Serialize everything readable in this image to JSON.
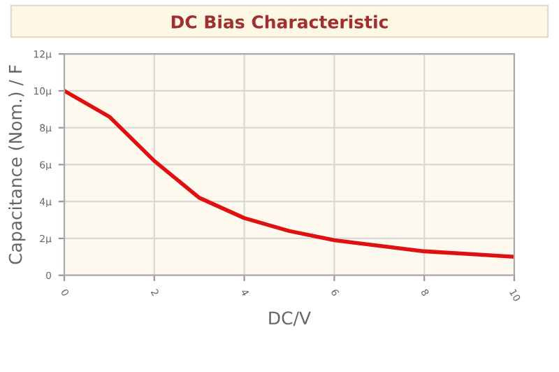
{
  "chart_data": {
    "type": "line",
    "title": "DC Bias Characteristic",
    "xlabel": "DC/V",
    "ylabel": "Capacitance (Nom.) / F",
    "x": [
      0,
      1,
      2,
      3,
      4,
      5,
      6,
      7,
      8,
      9,
      10
    ],
    "series": [
      {
        "color": "#e01010",
        "values": [
          10,
          8.6,
          6.2,
          4.2,
          3.1,
          2.4,
          1.9,
          1.6,
          1.3,
          1.15,
          1.0
        ]
      }
    ],
    "xlim": [
      0,
      10
    ],
    "xticks": [
      0,
      2,
      4,
      6,
      8,
      10
    ],
    "ylim": [
      0,
      12
    ],
    "yticks": [
      {
        "value": 0,
        "label": "0"
      },
      {
        "value": 2,
        "label": "2μ"
      },
      {
        "value": 4,
        "label": "4μ"
      },
      {
        "value": 6,
        "label": "6μ"
      },
      {
        "value": 8,
        "label": "8μ"
      },
      {
        "value": 10,
        "label": "10μ"
      },
      {
        "value": 12,
        "label": "12μ"
      }
    ],
    "grid": true,
    "marker": "none",
    "line_style": "solid"
  }
}
